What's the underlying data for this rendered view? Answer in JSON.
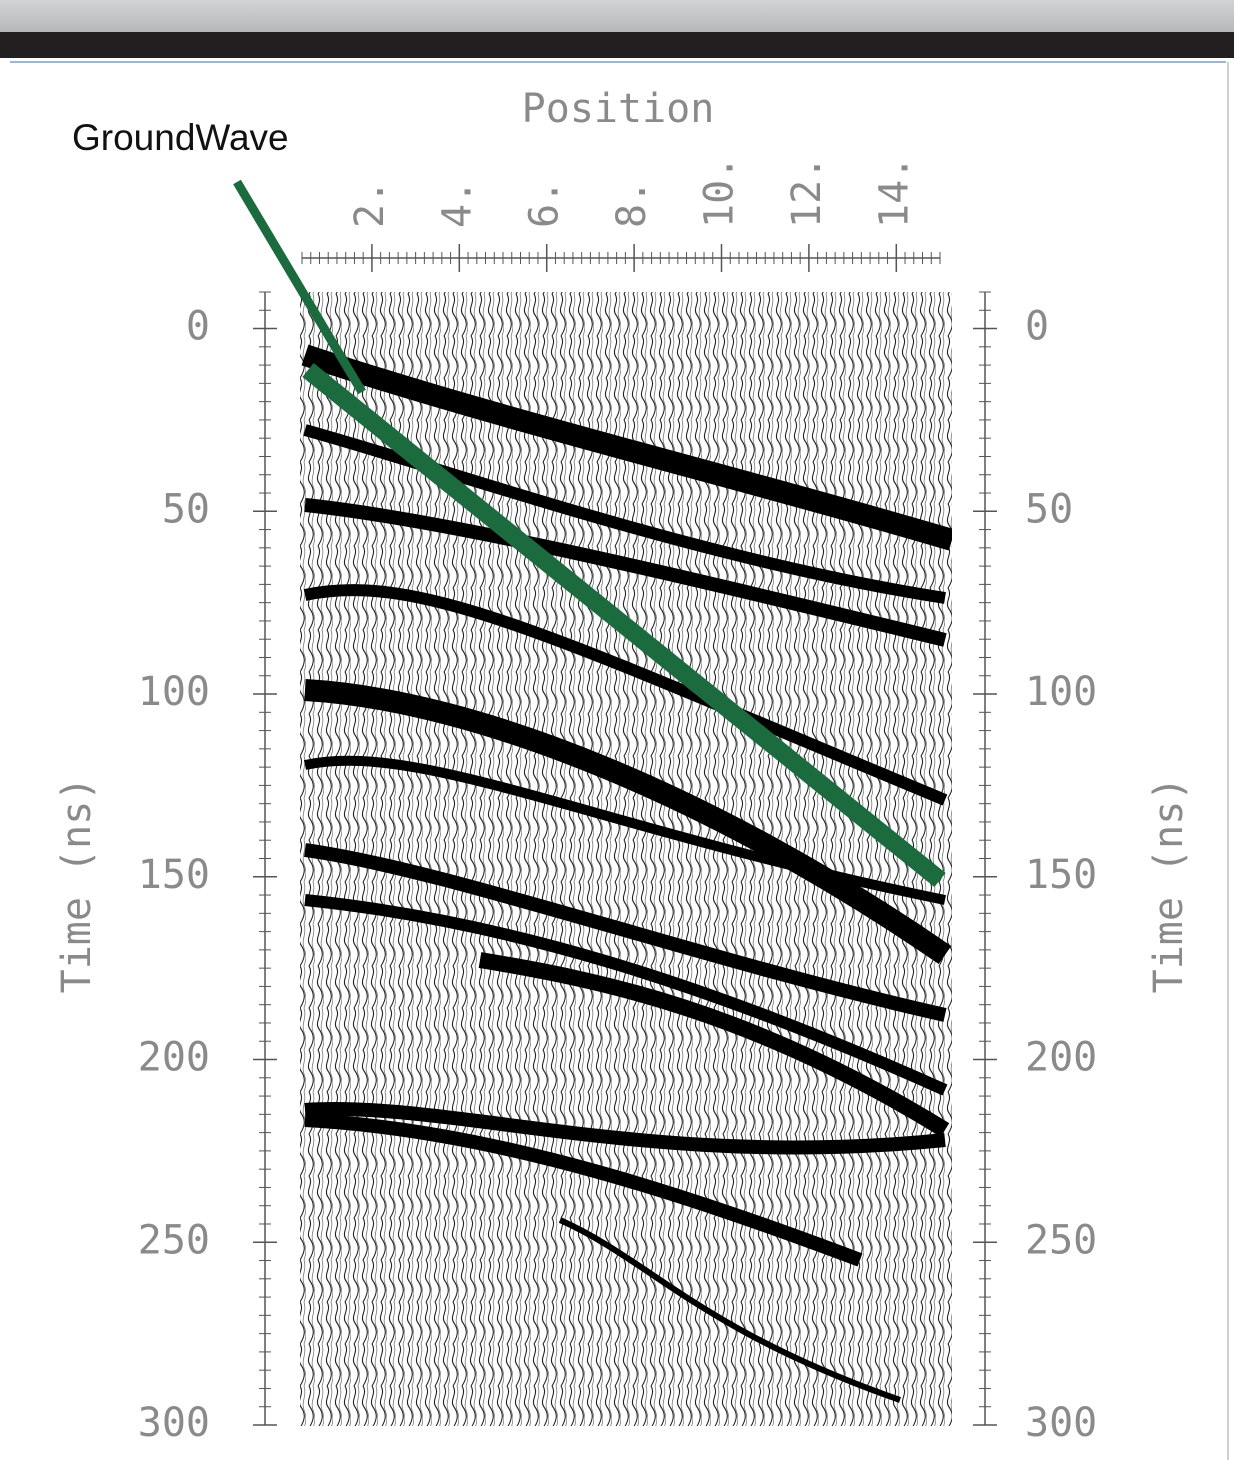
{
  "chart_data": {
    "type": "wiggle",
    "x_label": "Position",
    "y_label": "Time (ns)",
    "annotation": "GroundWave",
    "xlim": [
      0.4,
      15
    ],
    "xticks": [
      {
        "value": 2,
        "label": "2."
      },
      {
        "value": 4,
        "label": "4."
      },
      {
        "value": 6,
        "label": "6."
      },
      {
        "value": 8,
        "label": "8."
      },
      {
        "value": 10,
        "label": "10."
      },
      {
        "value": 12,
        "label": "12."
      },
      {
        "value": 14,
        "label": "14."
      }
    ],
    "ylim": [
      -10,
      300
    ],
    "yticks": [
      0,
      50,
      100,
      150,
      200,
      250,
      300
    ]
  }
}
